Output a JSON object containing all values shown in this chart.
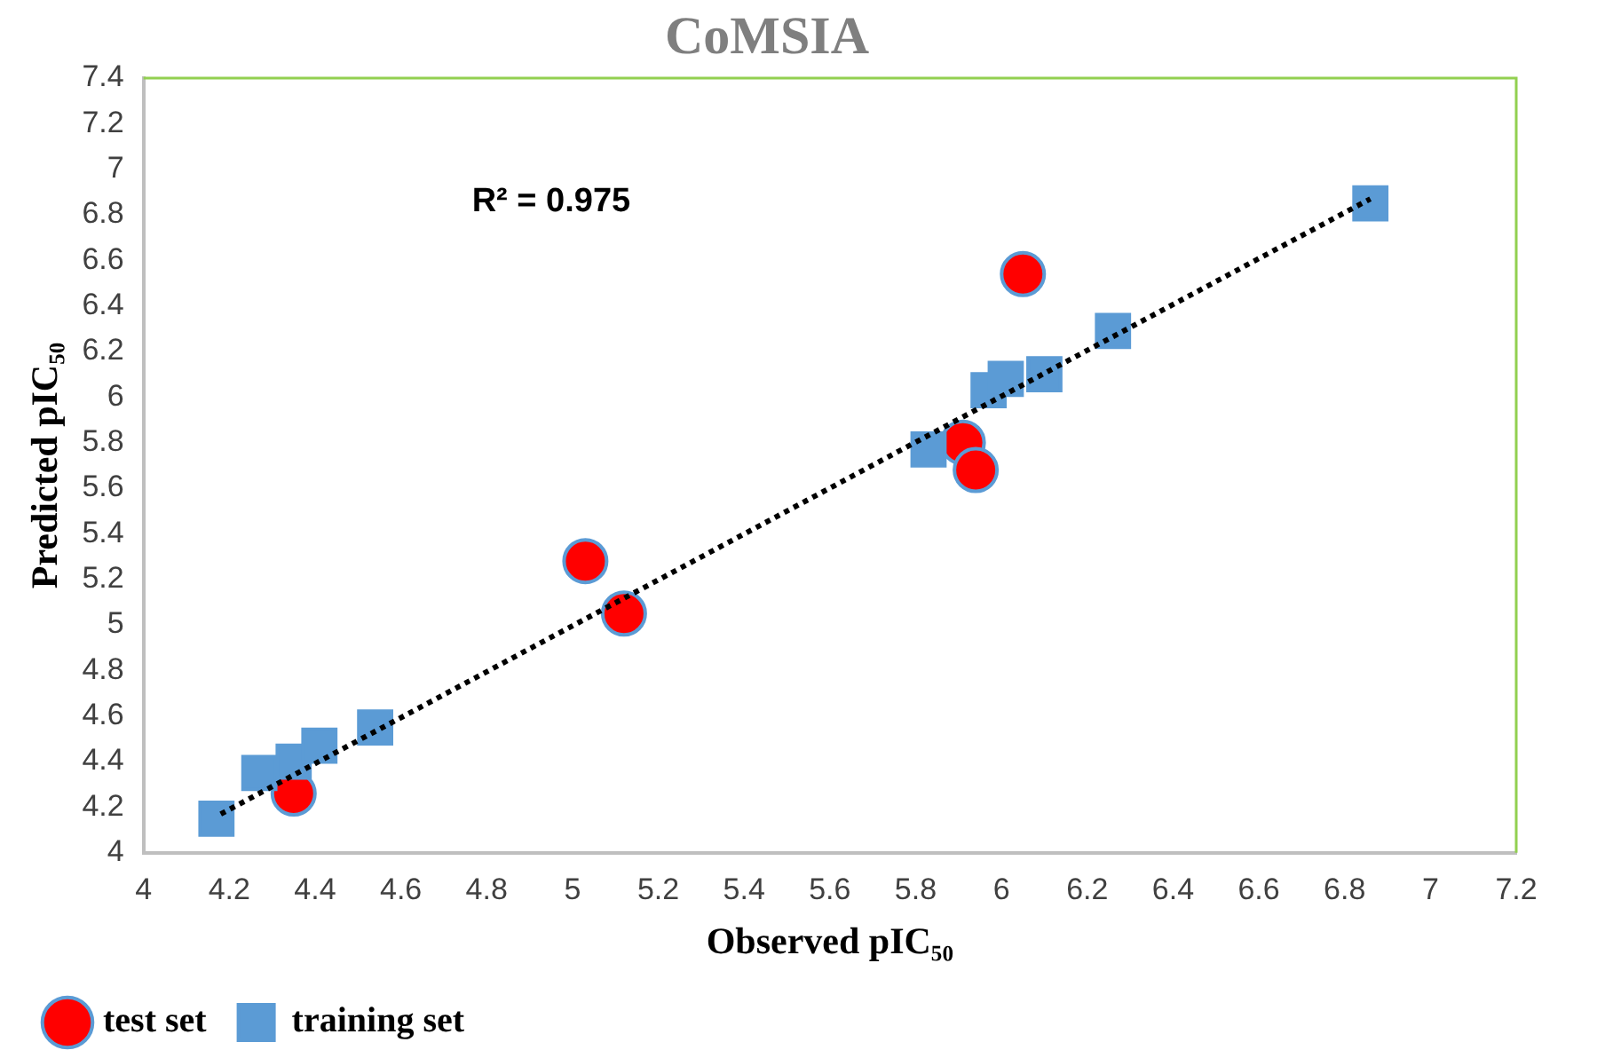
{
  "chart_data": {
    "type": "scatter",
    "title": "CoMSIA",
    "xlabel": "Observed pIC₅₀",
    "ylabel": "Predicted pIC₅₀",
    "xlim": [
      4,
      7.2
    ],
    "xticks": [
      4,
      4.2,
      4.4,
      4.6,
      4.8,
      5,
      5.2,
      5.4,
      5.6,
      5.8,
      6,
      6.2,
      6.4,
      6.6,
      6.8,
      7,
      7.2
    ],
    "ylim": [
      4,
      7.4
    ],
    "yticks": [
      4,
      4.2,
      4.4,
      4.6,
      4.8,
      5,
      5.2,
      5.4,
      5.6,
      5.8,
      6,
      6.2,
      6.4,
      6.6,
      6.8,
      7,
      7.2,
      7.4
    ],
    "grid": false,
    "legend": "bottom left",
    "annotations": [
      "R² = 0.975"
    ],
    "series": [
      {
        "name": "training set",
        "color": "#5b9bd5",
        "marker": "square",
        "x": [
          4.17,
          4.27,
          4.35,
          4.41,
          4.54,
          5.83,
          5.97,
          6.01,
          6.1,
          6.26,
          6.86
        ],
        "values": [
          4.15,
          4.35,
          4.4,
          4.47,
          4.55,
          5.77,
          6.03,
          6.08,
          6.1,
          6.29,
          6.85
        ]
      },
      {
        "name": "test set",
        "color": "#ff0000",
        "marker": "circle",
        "x": [
          4.35,
          5.03,
          5.12,
          5.91,
          5.94,
          6.05
        ],
        "values": [
          4.26,
          5.28,
          5.05,
          5.8,
          5.68,
          6.54
        ]
      },
      {
        "type": "line",
        "color": "#000000",
        "marker": "none",
        "line_style": "dotted",
        "x": [
          4.18,
          6.86
        ],
        "values": [
          4.17,
          6.87
        ]
      }
    ]
  }
}
